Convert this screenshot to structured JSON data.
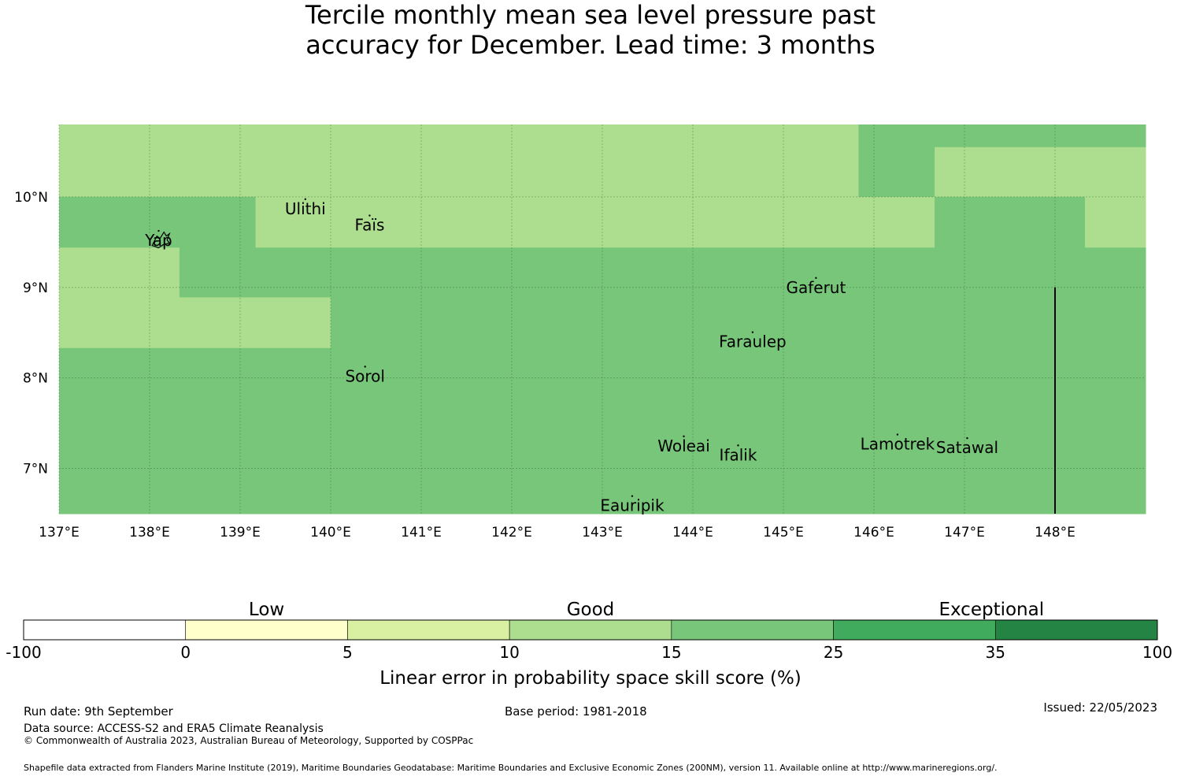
{
  "title": {
    "line1": "Tercile monthly mean sea level pressure past",
    "line2": "accuracy for December. Lead time: 3 months"
  },
  "map": {
    "lon_range": [
      137,
      149
    ],
    "lat_range": [
      6.5,
      10.8
    ],
    "lon_ticks": [
      {
        "value": 137,
        "label": "137°E"
      },
      {
        "value": 138,
        "label": "138°E"
      },
      {
        "value": 139,
        "label": "139°E"
      },
      {
        "value": 140,
        "label": "140°E"
      },
      {
        "value": 141,
        "label": "141°E"
      },
      {
        "value": 142,
        "label": "142°E"
      },
      {
        "value": 143,
        "label": "143°E"
      },
      {
        "value": 144,
        "label": "144°E"
      },
      {
        "value": 145,
        "label": "145°E"
      },
      {
        "value": 146,
        "label": "146°E"
      },
      {
        "value": 147,
        "label": "147°E"
      },
      {
        "value": 148,
        "label": "148°E"
      }
    ],
    "lat_ticks": [
      {
        "value": 10,
        "label": "10°N"
      },
      {
        "value": 9,
        "label": "9°N"
      },
      {
        "value": 8,
        "label": "8°N"
      },
      {
        "value": 7,
        "label": "7°N"
      }
    ],
    "places": [
      {
        "name": "Yap",
        "lon": 138.1,
        "lat": 9.52
      },
      {
        "name": "Ulithi",
        "lon": 139.72,
        "lat": 9.87
      },
      {
        "name": "Faïs",
        "lon": 140.43,
        "lat": 9.69
      },
      {
        "name": "Gaferut",
        "lon": 145.36,
        "lat": 9.0
      },
      {
        "name": "Faraulep",
        "lon": 144.66,
        "lat": 8.4
      },
      {
        "name": "Sorol",
        "lon": 140.38,
        "lat": 8.02
      },
      {
        "name": "Woleai",
        "lon": 143.9,
        "lat": 7.25
      },
      {
        "name": "Ifalik",
        "lon": 144.5,
        "lat": 7.15
      },
      {
        "name": "Lamotrek",
        "lon": 146.26,
        "lat": 7.27
      },
      {
        "name": "Satawal",
        "lon": 147.03,
        "lat": 7.23
      },
      {
        "name": "Eauripik",
        "lon": 143.33,
        "lat": 6.59
      }
    ],
    "cells_description": "skill category by region",
    "regions": [
      {
        "lon": [
          137,
          145.83
        ],
        "lat": [
          10.0,
          10.8
        ],
        "score_class": 10
      },
      {
        "lon": [
          145.83,
          146.67
        ],
        "lat": [
          10.0,
          10.8
        ],
        "score_class": 15
      },
      {
        "lon": [
          146.67,
          149
        ],
        "lat": [
          10.55,
          10.8
        ],
        "score_class": 15
      },
      {
        "lon": [
          146.67,
          149
        ],
        "lat": [
          10.0,
          10.55
        ],
        "score_class": 10
      },
      {
        "lon": [
          137,
          139.17
        ],
        "lat": [
          9.44,
          10.0
        ],
        "score_class": 15
      },
      {
        "lon": [
          139.17,
          146.67
        ],
        "lat": [
          9.44,
          10.0
        ],
        "score_class": 10
      },
      {
        "lon": [
          146.67,
          148.33
        ],
        "lat": [
          9.44,
          10.0
        ],
        "score_class": 15
      },
      {
        "lon": [
          148.33,
          149
        ],
        "lat": [
          9.44,
          10.0
        ],
        "score_class": 10
      },
      {
        "lon": [
          137,
          138.33
        ],
        "lat": [
          8.89,
          9.44
        ],
        "score_class": 10
      },
      {
        "lon": [
          138.33,
          149
        ],
        "lat": [
          8.89,
          9.44
        ],
        "score_class": 15
      },
      {
        "lon": [
          137,
          140.0
        ],
        "lat": [
          8.33,
          8.89
        ],
        "score_class": 10
      },
      {
        "lon": [
          140.0,
          149
        ],
        "lat": [
          8.33,
          8.89
        ],
        "score_class": 15
      },
      {
        "lon": [
          137,
          149
        ],
        "lat": [
          6.5,
          8.33
        ],
        "score_class": 15
      }
    ],
    "boundary_line": {
      "lon": 148.0,
      "lat": [
        6.5,
        9.0
      ]
    }
  },
  "legend": {
    "categories": [
      "Low",
      "Good",
      "Exceptional"
    ],
    "bins": [
      {
        "from": "-100",
        "to": "0",
        "color": "#ffffff"
      },
      {
        "from": "0",
        "to": "5",
        "color": "#ffffcc"
      },
      {
        "from": "5",
        "to": "10",
        "color": "#d9f0a3"
      },
      {
        "from": "10",
        "to": "15",
        "color": "#addd8e"
      },
      {
        "from": "15",
        "to": "25",
        "color": "#78c679"
      },
      {
        "from": "25",
        "to": "35",
        "color": "#41ab5d"
      },
      {
        "from": "35",
        "to": "100",
        "color": "#238443"
      }
    ],
    "tick_labels": [
      "-100",
      "0",
      "5",
      "10",
      "15",
      "25",
      "35",
      "100"
    ],
    "axis_label": "Linear error in probability space skill score (%)"
  },
  "footer": {
    "run_date": "Run date: 9th September",
    "base_period": "Base period: 1981-2018",
    "issued": "Issued: 22/05/2023",
    "data_source": "Data source: ACCESS-S2 and ERA5 Climate Reanalysis",
    "copyright": "© Commonwealth of Australia 2023, Australian Bureau of Meteorology, Supported by COSPPac",
    "shapefile": "Shapefile data extracted from Flanders Marine Institute (2019), Maritime Boundaries Geodatabase: Maritime Boundaries and Exclusive Economic Zones (200NM), version 11. Available online at http://www.marineregions.org/."
  }
}
